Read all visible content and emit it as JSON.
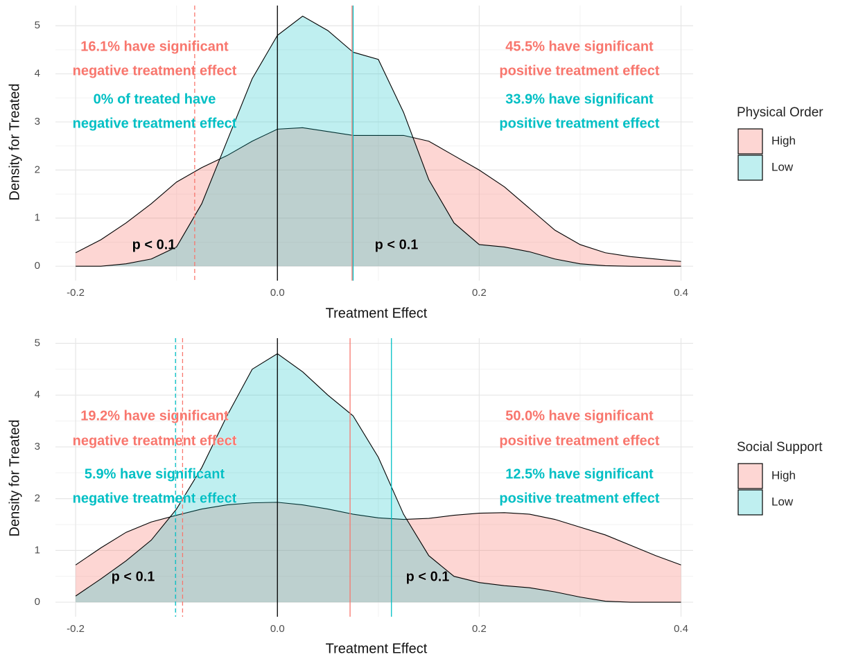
{
  "chart_data": [
    {
      "type": "density",
      "x": [
        -0.2,
        -0.175,
        -0.15,
        -0.125,
        -0.1,
        -0.075,
        -0.05,
        -0.025,
        0,
        0.025,
        0.05,
        0.075,
        0.1,
        0.125,
        0.15,
        0.175,
        0.2,
        0.225,
        0.25,
        0.275,
        0.3,
        0.325,
        0.35,
        0.375,
        0.4
      ],
      "series": [
        {
          "name": "High",
          "color": "#f8766d",
          "values": [
            0.28,
            0.55,
            0.9,
            1.3,
            1.75,
            2.05,
            2.3,
            2.6,
            2.85,
            2.88,
            2.8,
            2.72,
            2.72,
            2.72,
            2.6,
            2.3,
            2.0,
            1.65,
            1.2,
            0.75,
            0.45,
            0.28,
            0.2,
            0.15,
            0.1
          ]
        },
        {
          "name": "Low",
          "color": "#00bfc4",
          "values": [
            0,
            0,
            0.05,
            0.15,
            0.4,
            1.3,
            2.6,
            3.9,
            4.8,
            5.2,
            4.9,
            4.45,
            4.3,
            3.2,
            1.8,
            0.9,
            0.45,
            0.4,
            0.3,
            0.15,
            0.05,
            0.01,
            0,
            0,
            0
          ]
        }
      ],
      "vlines": [
        {
          "value": 0,
          "color": "#000000",
          "dashed": false
        },
        {
          "value": 0.074,
          "color": "#f8766d",
          "dashed": false
        },
        {
          "value": 0.075,
          "color": "#00bfc4",
          "dashed": false
        },
        {
          "value": -0.082,
          "color": "#f8766d",
          "dashed": true
        }
      ],
      "annotations": [
        {
          "text": "16.1% have significant",
          "color": "#f8766d"
        },
        {
          "text": "negative treatment effect",
          "color": "#f8766d"
        },
        {
          "text": "0% of treated have",
          "color": "#00bfc4"
        },
        {
          "text": "negative treatment effect",
          "color": "#00bfc4"
        },
        {
          "text": "45.5% have significant",
          "color": "#f8766d"
        },
        {
          "text": "positive treatment effect",
          "color": "#f8766d"
        },
        {
          "text": "33.9% have significant",
          "color": "#00bfc4"
        },
        {
          "text": "positive treatment effect",
          "color": "#00bfc4"
        },
        {
          "text": "p < 0.1",
          "color": "#000000"
        },
        {
          "text": "p < 0.1",
          "color": "#000000"
        }
      ],
      "x_label": "Treatment Effect",
      "y_label": "Density for Treated",
      "xlim": [
        -0.22,
        0.412
      ],
      "ylim": [
        -0.3,
        5.42
      ],
      "xticks": [
        -0.2,
        {
          "value": 0,
          "label": "0.0"
        },
        0.2,
        0.4
      ],
      "yticks": [
        0,
        1,
        2,
        3,
        4,
        5
      ],
      "grid": true,
      "legend_title": "Physical Order",
      "legend": "right"
    },
    {
      "type": "density",
      "x": [
        -0.2,
        -0.175,
        -0.15,
        -0.125,
        -0.1,
        -0.075,
        -0.05,
        -0.025,
        0,
        0.025,
        0.05,
        0.075,
        0.1,
        0.125,
        0.15,
        0.175,
        0.2,
        0.225,
        0.25,
        0.275,
        0.3,
        0.325,
        0.35,
        0.375,
        0.4
      ],
      "series": [
        {
          "name": "High",
          "color": "#f8766d",
          "values": [
            0.72,
            1.05,
            1.35,
            1.55,
            1.68,
            1.8,
            1.88,
            1.92,
            1.93,
            1.88,
            1.8,
            1.7,
            1.63,
            1.6,
            1.62,
            1.68,
            1.72,
            1.73,
            1.7,
            1.6,
            1.45,
            1.3,
            1.1,
            0.9,
            0.72
          ]
        },
        {
          "name": "Low",
          "color": "#00bfc4",
          "values": [
            0.12,
            0.45,
            0.8,
            1.2,
            1.8,
            2.6,
            3.6,
            4.5,
            4.8,
            4.45,
            4.0,
            3.6,
            2.8,
            1.7,
            0.9,
            0.5,
            0.38,
            0.32,
            0.28,
            0.2,
            0.1,
            0.02,
            0,
            0,
            0
          ]
        }
      ],
      "vlines": [
        {
          "value": 0,
          "color": "#000000",
          "dashed": false
        },
        {
          "value": 0.072,
          "color": "#f8766d",
          "dashed": false
        },
        {
          "value": 0.113,
          "color": "#00bfc4",
          "dashed": false
        },
        {
          "value": -0.101,
          "color": "#00bfc4",
          "dashed": true
        },
        {
          "value": -0.094,
          "color": "#f8766d",
          "dashed": true
        }
      ],
      "annotations": [
        {
          "text": "19.2% have significant",
          "color": "#f8766d"
        },
        {
          "text": "negative treatment effect",
          "color": "#f8766d"
        },
        {
          "text": "5.9% have significant",
          "color": "#00bfc4"
        },
        {
          "text": "negative treatment effect",
          "color": "#00bfc4"
        },
        {
          "text": "50.0% have significant",
          "color": "#f8766d"
        },
        {
          "text": "positive treatment effect",
          "color": "#f8766d"
        },
        {
          "text": "12.5% have significant",
          "color": "#00bfc4"
        },
        {
          "text": "positive treatment effect",
          "color": "#00bfc4"
        },
        {
          "text": "p < 0.1",
          "color": "#000000"
        },
        {
          "text": "p < 0.1",
          "color": "#000000"
        }
      ],
      "x_label": "Treatment Effect",
      "y_label": "Density for Treated",
      "xlim": [
        -0.22,
        0.412
      ],
      "ylim": [
        -0.28,
        5.1
      ],
      "xticks": [
        -0.2,
        {
          "value": 0,
          "label": "0.0"
        },
        0.2,
        0.4
      ],
      "yticks": [
        0,
        1,
        2,
        3,
        4,
        5
      ],
      "grid": true,
      "legend_title": "Social Support",
      "legend": "right"
    }
  ]
}
